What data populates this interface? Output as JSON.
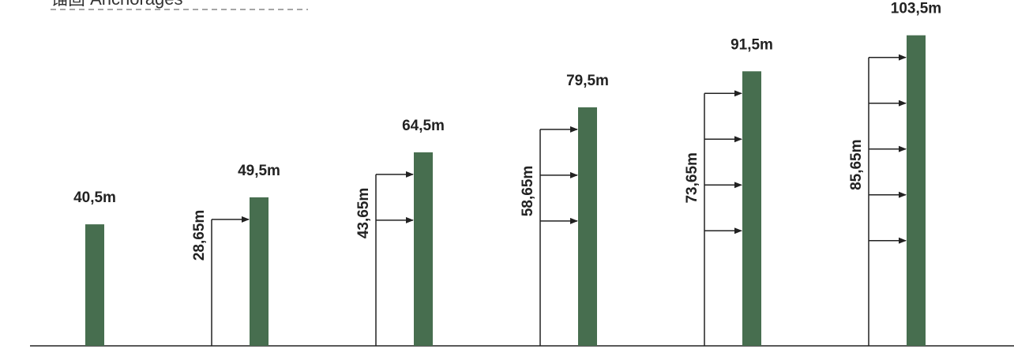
{
  "header": {
    "title": "锚固 Anchorages"
  },
  "colors": {
    "mast": "#476e4f",
    "line": "#222222",
    "header_text": "#333333"
  },
  "masts": [
    {
      "height_label": "40,5m",
      "height_m": 40.5,
      "anchor_label": "",
      "anchor_levels": 0
    },
    {
      "height_label": "49,5m",
      "height_m": 49.5,
      "anchor_label": "28,65m",
      "anchor_levels": 1
    },
    {
      "height_label": "64,5m",
      "height_m": 64.5,
      "anchor_label": "43,65m",
      "anchor_levels": 2
    },
    {
      "height_label": "79,5m",
      "height_m": 79.5,
      "anchor_label": "58,65m",
      "anchor_levels": 3
    },
    {
      "height_label": "91,5m",
      "height_m": 91.5,
      "anchor_label": "73,65m",
      "anchor_levels": 4
    },
    {
      "height_label": "103,5m",
      "height_m": 103.5,
      "anchor_label": "85,65m",
      "anchor_levels": 5
    }
  ]
}
